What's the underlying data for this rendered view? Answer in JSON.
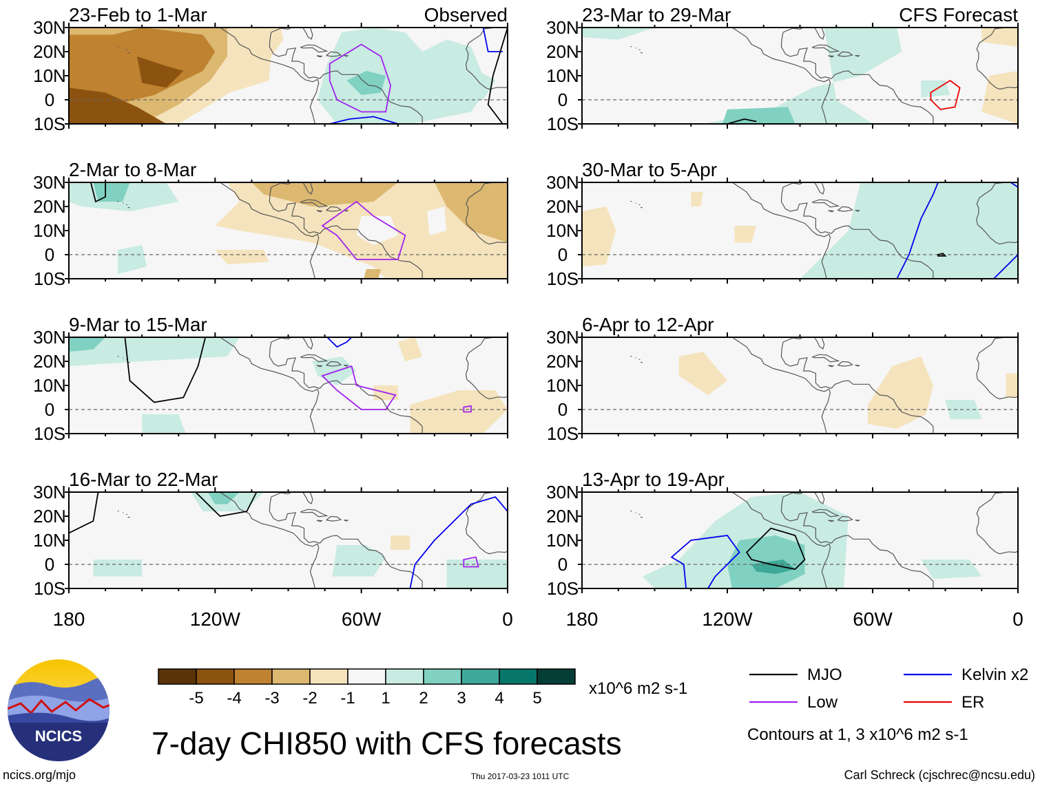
{
  "figure": {
    "title": "7-day CHI850 with CFS forecasts",
    "footer_left": "ncics.org/mjo",
    "footer_center": "Thu 2017-03-23 1011 UTC",
    "footer_right": "Carl Schreck (cjschrec@ncsu.edu)",
    "logo_text": "NCICS",
    "observed_label": "Observed",
    "forecast_label": "CFS Forecast"
  },
  "chart_data": {
    "type": "map-panels",
    "variable": "7-day CHI850 anomaly",
    "units": "x10^6 m2 s-1",
    "lat_ticks": [
      "30N",
      "20N",
      "10N",
      "0",
      "10S"
    ],
    "lat_values": [
      30,
      20,
      10,
      0,
      -10
    ],
    "lon_ticks": [
      "180",
      "120W",
      "60W",
      "0"
    ],
    "lon_values": [
      -180,
      -120,
      -60,
      0
    ],
    "lon_range": [
      -180,
      0
    ],
    "lat_range": [
      -10,
      30
    ],
    "panels": [
      {
        "id": "o1",
        "column": "observed",
        "row": 0,
        "title": "23-Feb to 1-Mar"
      },
      {
        "id": "o2",
        "column": "observed",
        "row": 1,
        "title": "2-Mar to 8-Mar"
      },
      {
        "id": "o3",
        "column": "observed",
        "row": 2,
        "title": "9-Mar to 15-Mar"
      },
      {
        "id": "o4",
        "column": "observed",
        "row": 3,
        "title": "16-Mar to 22-Mar"
      },
      {
        "id": "f1",
        "column": "forecast",
        "row": 0,
        "title": "23-Mar to 29-Mar"
      },
      {
        "id": "f2",
        "column": "forecast",
        "row": 1,
        "title": "30-Mar to 5-Apr"
      },
      {
        "id": "f3",
        "column": "forecast",
        "row": 2,
        "title": "6-Apr to 12-Apr"
      },
      {
        "id": "f4",
        "column": "forecast",
        "row": 3,
        "title": "13-Apr to 19-Apr"
      }
    ],
    "colorbar": {
      "labels": [
        "-5",
        "-4",
        "-3",
        "-2",
        "-1",
        "1",
        "2",
        "3",
        "4",
        "5"
      ],
      "colors": [
        "#5a3408",
        "#8c5310",
        "#be8230",
        "#dcb870",
        "#f5e3bd",
        "#f6f6f6",
        "#c8ebe2",
        "#80d1c1",
        "#3fa999",
        "#08776b",
        "#053d37"
      ],
      "units_label": "x10^6 m2 s-1"
    },
    "contour_legend": [
      {
        "label": "MJO",
        "color": "#000000"
      },
      {
        "label": "Low",
        "color": "#a020f0"
      },
      {
        "label": "Kelvin x2",
        "color": "#0000ee"
      },
      {
        "label": "ER",
        "color": "#ee0000"
      }
    ],
    "contour_note": "Contours at 1, 3 x10^6 m2 s-1"
  }
}
